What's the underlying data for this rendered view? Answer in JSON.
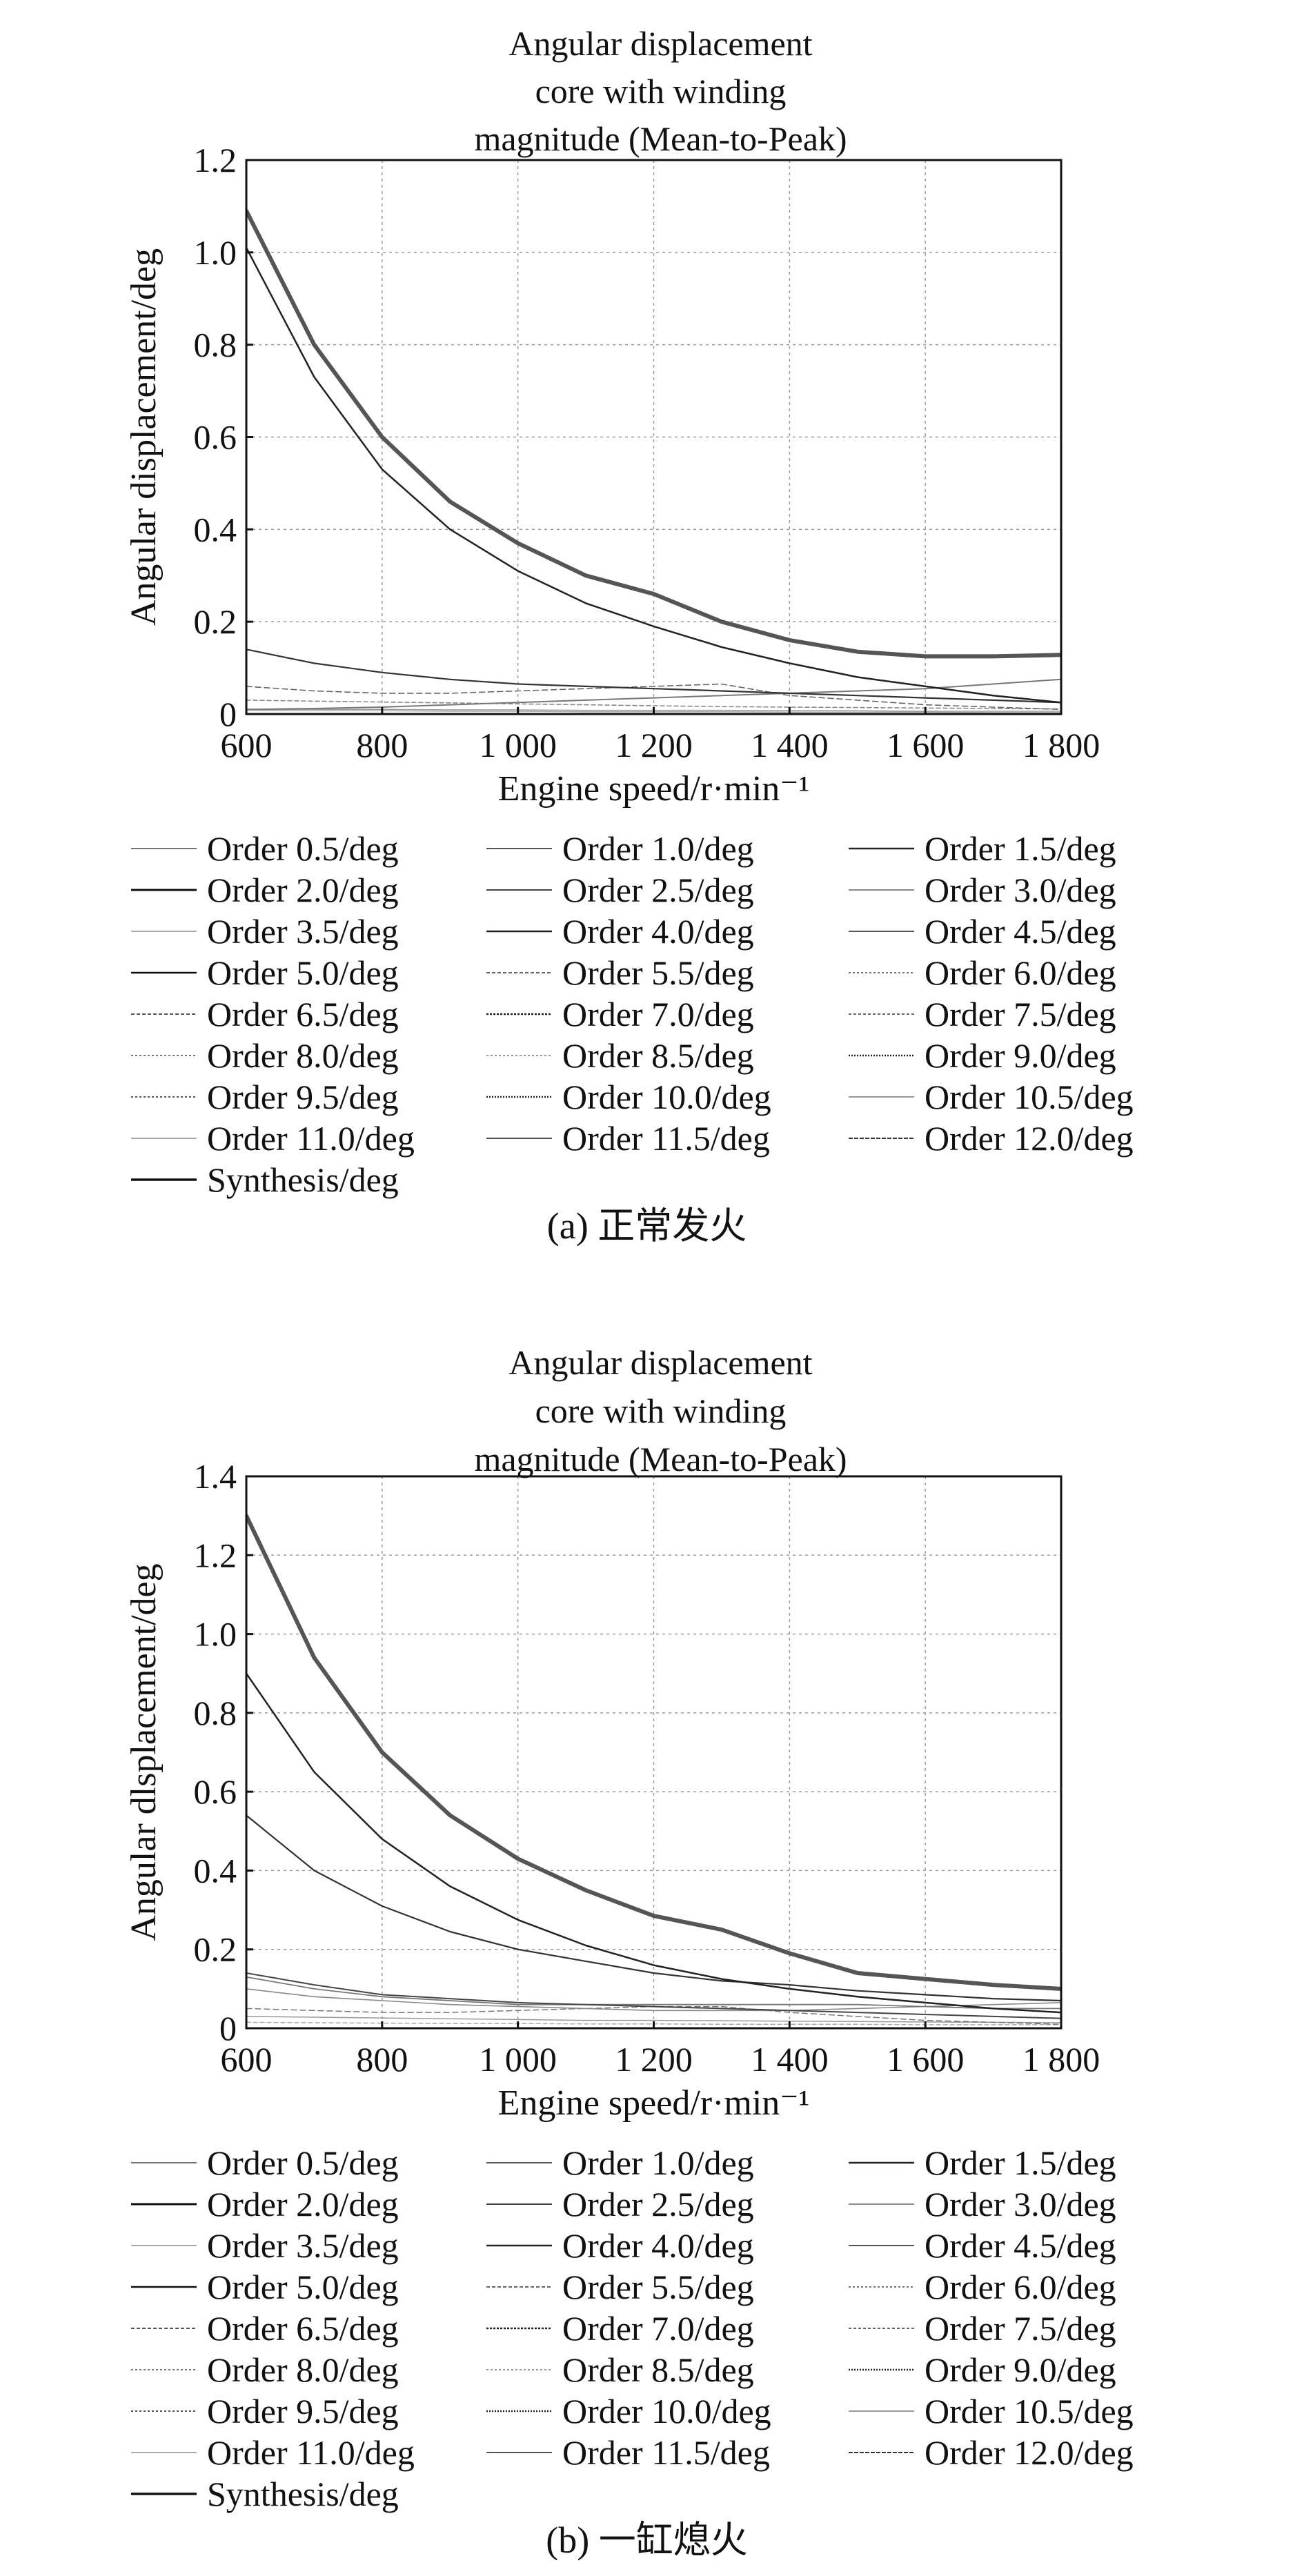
{
  "chart_data": [
    {
      "type": "line",
      "title": [
        "Angular displacement",
        "core with winding",
        "magnitude (Mean-to-Peak)"
      ],
      "xlabel": "Engine speed/r·min⁻¹",
      "ylabel": "Angular displacement/deg",
      "xlim": [
        600,
        1800
      ],
      "ylim": [
        0,
        1.2
      ],
      "xticks": [
        600,
        800,
        1000,
        1200,
        1400,
        1600,
        1800
      ],
      "xtick_labels": [
        "600",
        "800",
        "1 000",
        "1 200",
        "1 400",
        "1 600",
        "1 800"
      ],
      "yticks": [
        0,
        0.2,
        0.4,
        0.6,
        0.8,
        1.0,
        1.2
      ],
      "ytick_labels": [
        "0",
        "0.2",
        "0.4",
        "0.6",
        "0.8",
        "1.0",
        "1.2"
      ],
      "grid": true,
      "caption": "(a) 正常发火",
      "legend": [
        "Order 0.5/deg",
        "Order 1.0/deg",
        "Order 1.5/deg",
        "Order 2.0/deg",
        "Order 2.5/deg",
        "Order 3.0/deg",
        "Order 3.5/deg",
        "Order 4.0/deg",
        "Order 4.5/deg",
        "Order 5.0/deg",
        "Order 5.5/deg",
        "Order 6.0/deg",
        "Order 6.5/deg",
        "Order 7.0/deg",
        "Order 7.5/deg",
        "Order 8.0/deg",
        "Order 8.5/deg",
        "Order 9.0/deg",
        "Order 9.5/deg",
        "Order 10.0/deg",
        "Order 10.5/deg",
        "Order 11.0/deg",
        "Order 11.5/deg",
        "Order 12.0/deg",
        "Synthesis/deg"
      ],
      "x": [
        600,
        700,
        800,
        900,
        1000,
        1100,
        1200,
        1300,
        1400,
        1500,
        1600,
        1700,
        1800
      ],
      "series": [
        {
          "name": "Synthesis/deg",
          "color": "#555555",
          "width": 6,
          "dash": "",
          "values": [
            1.09,
            0.8,
            0.6,
            0.46,
            0.37,
            0.3,
            0.26,
            0.2,
            0.16,
            0.135,
            0.125,
            0.125,
            0.128
          ]
        },
        {
          "name": "Order 2.0/deg",
          "color": "#222222",
          "width": 2.5,
          "dash": "",
          "values": [
            1.01,
            0.73,
            0.53,
            0.4,
            0.31,
            0.24,
            0.19,
            0.145,
            0.11,
            0.08,
            0.06,
            0.04,
            0.025
          ]
        },
        {
          "name": "Order 4.0/deg",
          "color": "#333333",
          "width": 2.2,
          "dash": "",
          "values": [
            0.14,
            0.11,
            0.09,
            0.075,
            0.065,
            0.06,
            0.055,
            0.05,
            0.045,
            0.04,
            0.035,
            0.03,
            0.025
          ]
        },
        {
          "name": "Order 1.0/deg",
          "color": "#777777",
          "width": 2,
          "dash": "",
          "values": [
            0.01,
            0.012,
            0.015,
            0.02,
            0.025,
            0.03,
            0.035,
            0.04,
            0.045,
            0.05,
            0.055,
            0.065,
            0.075
          ]
        },
        {
          "name": "Order 6.0/deg",
          "color": "#666666",
          "width": 1.6,
          "dash": "8 5",
          "values": [
            0.06,
            0.05,
            0.045,
            0.045,
            0.05,
            0.055,
            0.06,
            0.065,
            0.04,
            0.03,
            0.02,
            0.015,
            0.01
          ]
        },
        {
          "name": "Order 8.0/deg",
          "color": "#888888",
          "width": 1.6,
          "dash": "6 4",
          "values": [
            0.03,
            0.028,
            0.026,
            0.024,
            0.022,
            0.02,
            0.018,
            0.016,
            0.015,
            0.014,
            0.013,
            0.012,
            0.011
          ]
        },
        {
          "name": "Order 0.5/deg",
          "color": "#999999",
          "width": 1.5,
          "dash": "",
          "values": [
            0.01,
            0.01,
            0.01,
            0.009,
            0.009,
            0.008,
            0.008,
            0.008,
            0.007,
            0.007,
            0.006,
            0.006,
            0.006
          ]
        },
        {
          "name": "Order 3.0/deg",
          "color": "#aaaaaa",
          "width": 1.5,
          "dash": "",
          "values": [
            0.008,
            0.007,
            0.007,
            0.006,
            0.006,
            0.005,
            0.005,
            0.005,
            0.004,
            0.004,
            0.004,
            0.003,
            0.003
          ]
        }
      ]
    },
    {
      "type": "line",
      "title": [
        "Angular displacement",
        "core with winding",
        "magnitude (Mean-to-Peak)"
      ],
      "xlabel": "Engine speed/r·min⁻¹",
      "ylabel": "Angular dlsplacement/deg",
      "xlim": [
        600,
        1800
      ],
      "ylim": [
        0,
        1.4
      ],
      "xticks": [
        600,
        800,
        1000,
        1200,
        1400,
        1600,
        1800
      ],
      "xtick_labels": [
        "600",
        "800",
        "1 000",
        "1 200",
        "1 400",
        "1 600",
        "1 800"
      ],
      "yticks": [
        0,
        0.2,
        0.4,
        0.6,
        0.8,
        1.0,
        1.2,
        1.4
      ],
      "ytick_labels": [
        "0",
        "0.2",
        "0.4",
        "0.6",
        "0.8",
        "1.0",
        "1.2",
        "1.4"
      ],
      "grid": true,
      "caption": "(b) 一缸熄火",
      "legend": [
        "Order 0.5/deg",
        "Order 1.0/deg",
        "Order 1.5/deg",
        "Order 2.0/deg",
        "Order 2.5/deg",
        "Order 3.0/deg",
        "Order 3.5/deg",
        "Order 4.0/deg",
        "Order 4.5/deg",
        "Order 5.0/deg",
        "Order 5.5/deg",
        "Order 6.0/deg",
        "Order 6.5/deg",
        "Order 7.0/deg",
        "Order 7.5/deg",
        "Order 8.0/deg",
        "Order 8.5/deg",
        "Order 9.0/deg",
        "Order 9.5/deg",
        "Order 10.0/deg",
        "Order 10.5/deg",
        "Order 11.0/deg",
        "Order 11.5/deg",
        "Order 12.0/deg",
        "Synthesis/deg"
      ],
      "x": [
        600,
        700,
        800,
        900,
        1000,
        1100,
        1200,
        1300,
        1400,
        1500,
        1600,
        1700,
        1800
      ],
      "series": [
        {
          "name": "Synthesis/deg",
          "color": "#555555",
          "width": 6,
          "dash": "",
          "values": [
            1.3,
            0.94,
            0.7,
            0.54,
            0.43,
            0.35,
            0.285,
            0.25,
            0.19,
            0.14,
            0.125,
            0.11,
            0.1
          ]
        },
        {
          "name": "Order 2.0/deg",
          "color": "#222222",
          "width": 2.5,
          "dash": "",
          "values": [
            0.9,
            0.65,
            0.48,
            0.36,
            0.275,
            0.21,
            0.16,
            0.125,
            0.1,
            0.08,
            0.065,
            0.05,
            0.04
          ]
        },
        {
          "name": "Order 1.0/deg",
          "color": "#333333",
          "width": 2.2,
          "dash": "",
          "values": [
            0.54,
            0.4,
            0.31,
            0.245,
            0.2,
            0.17,
            0.14,
            0.12,
            0.11,
            0.095,
            0.085,
            0.075,
            0.07
          ]
        },
        {
          "name": "Order 4.0/deg",
          "color": "#444444",
          "width": 2,
          "dash": "",
          "values": [
            0.14,
            0.11,
            0.085,
            0.075,
            0.065,
            0.06,
            0.055,
            0.05,
            0.045,
            0.04,
            0.035,
            0.03,
            0.025
          ]
        },
        {
          "name": "Order 0.5/deg",
          "color": "#777777",
          "width": 1.8,
          "dash": "",
          "values": [
            0.13,
            0.1,
            0.08,
            0.07,
            0.06,
            0.06,
            0.06,
            0.06,
            0.06,
            0.06,
            0.055,
            0.05,
            0.05
          ]
        },
        {
          "name": "Order 1.5/deg",
          "color": "#888888",
          "width": 1.6,
          "dash": "",
          "values": [
            0.1,
            0.08,
            0.07,
            0.06,
            0.055,
            0.05,
            0.045,
            0.045,
            0.045,
            0.05,
            0.055,
            0.06,
            0.065
          ]
        },
        {
          "name": "Order 6.0/deg",
          "color": "#777777",
          "width": 1.5,
          "dash": "8 5",
          "values": [
            0.05,
            0.045,
            0.04,
            0.04,
            0.045,
            0.05,
            0.055,
            0.055,
            0.04,
            0.03,
            0.02,
            0.015,
            0.01
          ]
        },
        {
          "name": "Order 3.0/deg",
          "color": "#999999",
          "width": 1.5,
          "dash": "",
          "values": [
            0.03,
            0.028,
            0.026,
            0.024,
            0.022,
            0.02,
            0.02,
            0.019,
            0.018,
            0.017,
            0.016,
            0.015,
            0.014
          ]
        },
        {
          "name": "Order 8.0/deg",
          "color": "#aaaaaa",
          "width": 1.5,
          "dash": "6 4",
          "values": [
            0.015,
            0.014,
            0.013,
            0.012,
            0.012,
            0.011,
            0.011,
            0.01,
            0.01,
            0.01,
            0.009,
            0.009,
            0.009
          ]
        }
      ]
    }
  ],
  "legend_styles": [
    {
      "color": "#777777",
      "width": 2,
      "dash": ""
    },
    {
      "color": "#555555",
      "width": 2,
      "dash": ""
    },
    {
      "color": "#222222",
      "width": 2.5,
      "dash": ""
    },
    {
      "color": "#111111",
      "width": 3,
      "dash": ""
    },
    {
      "color": "#444444",
      "width": 2,
      "dash": ""
    },
    {
      "color": "#888888",
      "width": 2,
      "dash": ""
    },
    {
      "color": "#aaaaaa",
      "width": 2,
      "dash": ""
    },
    {
      "color": "#222222",
      "width": 2.5,
      "dash": ""
    },
    {
      "color": "#555555",
      "width": 2,
      "dash": ""
    },
    {
      "color": "#111111",
      "width": 2.5,
      "dash": ""
    },
    {
      "color": "#666666",
      "width": 2,
      "dash": "5 3"
    },
    {
      "color": "#777777",
      "width": 2,
      "dash": "3 3"
    },
    {
      "color": "#555555",
      "width": 2,
      "dash": "5 3"
    },
    {
      "color": "#222222",
      "width": 2.5,
      "dash": "3 2"
    },
    {
      "color": "#666666",
      "width": 2,
      "dash": "4 3"
    },
    {
      "color": "#777777",
      "width": 2,
      "dash": "3 3"
    },
    {
      "color": "#999999",
      "width": 2,
      "dash": "3 3"
    },
    {
      "color": "#222222",
      "width": 2.5,
      "dash": "2 2"
    },
    {
      "color": "#555555",
      "width": 2,
      "dash": "3 3"
    },
    {
      "color": "#222222",
      "width": 2.5,
      "dash": "2 2"
    },
    {
      "color": "#999999",
      "width": 2,
      "dash": ""
    },
    {
      "color": "#aaaaaa",
      "width": 2,
      "dash": ""
    },
    {
      "color": "#555555",
      "width": 2,
      "dash": ""
    },
    {
      "color": "#333333",
      "width": 2,
      "dash": "6 2"
    },
    {
      "color": "#111111",
      "width": 3.5,
      "dash": ""
    }
  ]
}
